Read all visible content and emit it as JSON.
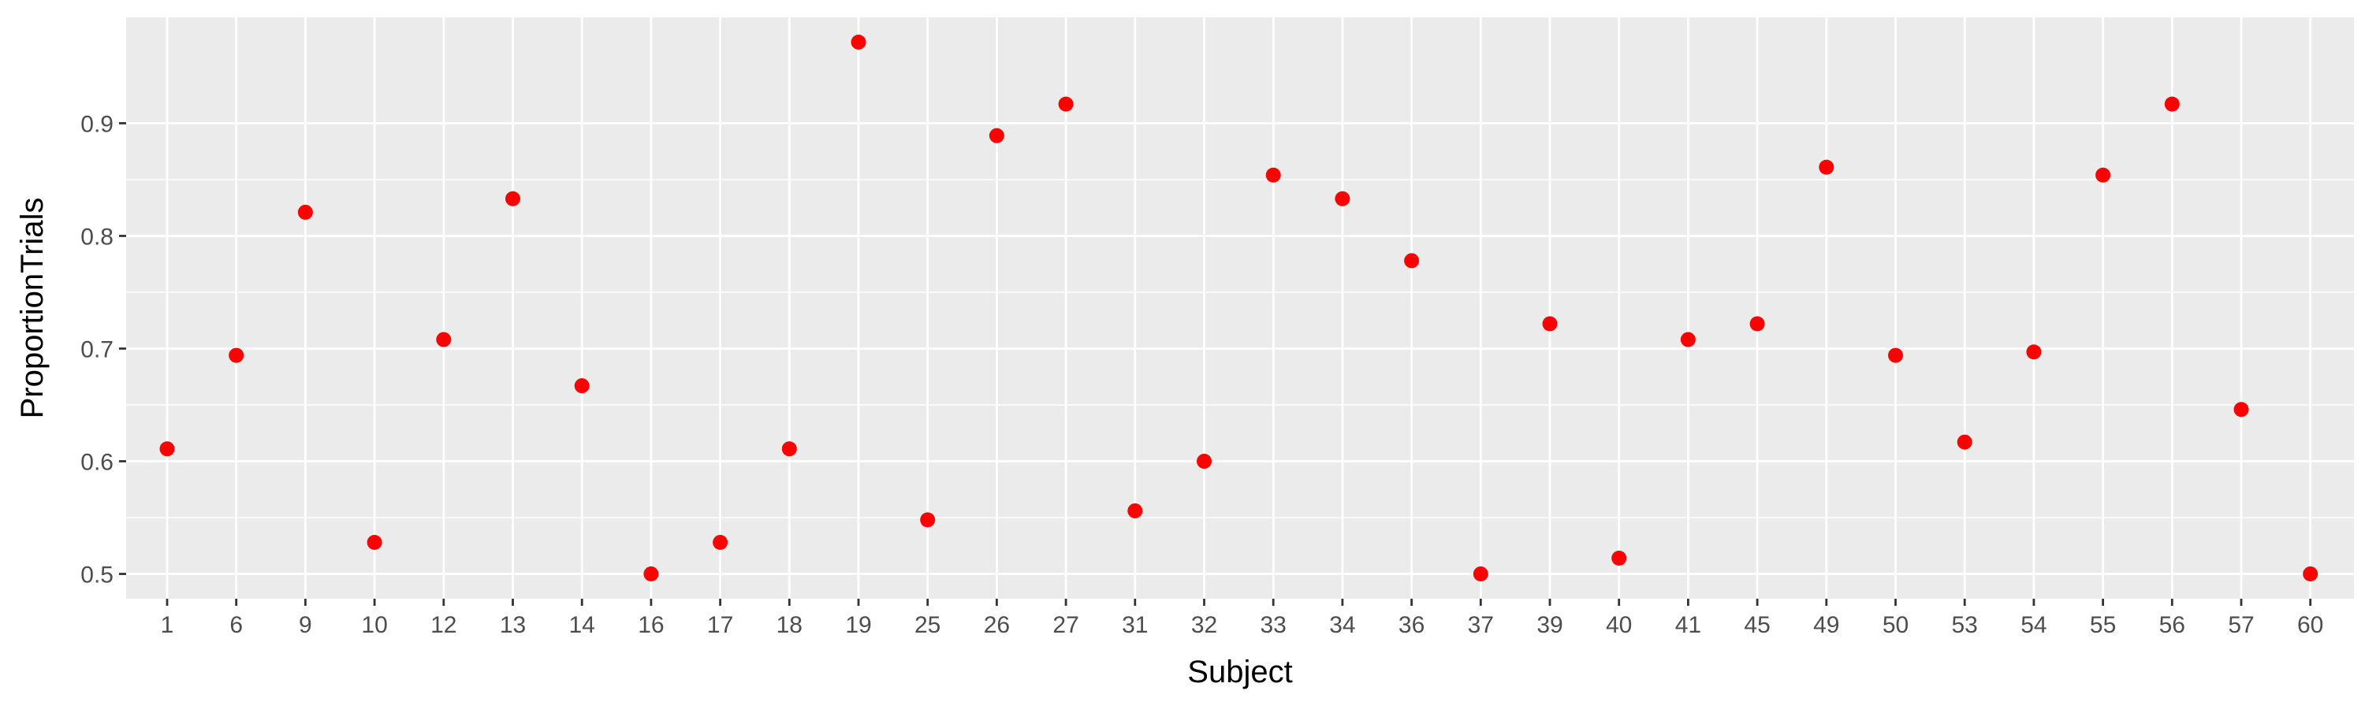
{
  "chart_data": {
    "type": "scatter",
    "title": "",
    "xlabel": "Subject",
    "ylabel": "ProportionTrials",
    "categories": [
      "1",
      "6",
      "9",
      "10",
      "12",
      "13",
      "14",
      "16",
      "17",
      "18",
      "19",
      "25",
      "26",
      "27",
      "31",
      "32",
      "33",
      "34",
      "36",
      "37",
      "39",
      "40",
      "41",
      "45",
      "49",
      "50",
      "53",
      "54",
      "55",
      "56",
      "57",
      "60"
    ],
    "values": [
      0.611,
      0.694,
      0.821,
      0.528,
      0.708,
      0.833,
      0.667,
      0.5,
      0.528,
      0.611,
      0.972,
      0.548,
      0.889,
      0.917,
      0.556,
      0.6,
      0.854,
      0.833,
      0.778,
      0.5,
      0.722,
      0.514,
      0.708,
      0.722,
      0.861,
      0.694,
      0.617,
      0.697,
      0.854,
      0.917,
      0.646,
      0.5
    ],
    "ylim": [
      0.478,
      0.994
    ],
    "yticks": [
      0.5,
      0.6,
      0.7,
      0.8,
      0.9
    ],
    "ytick_labels": [
      "0.5",
      "0.6",
      "0.7",
      "0.8",
      "0.9"
    ],
    "grid": true,
    "legend": "none",
    "colors": {
      "point": "#ff0000",
      "panel": "#ebebeb",
      "grid": "#ffffff",
      "tick_text": "#4d4d4d",
      "axis_title": "#000000"
    }
  }
}
